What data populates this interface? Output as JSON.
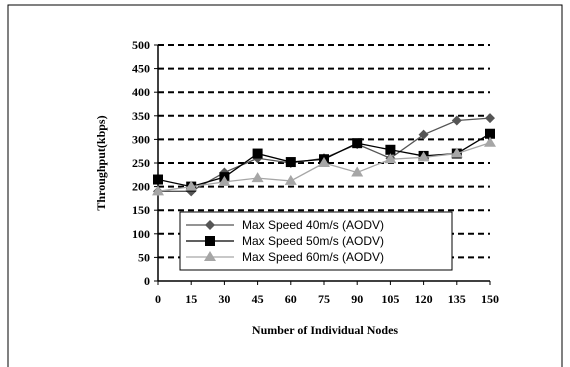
{
  "chart_data": {
    "type": "line",
    "xlabel": "Number of Individual Nodes",
    "ylabel": "Throughput(kbps)",
    "categories": [
      "0",
      "15",
      "30",
      "45",
      "60",
      "75",
      "90",
      "105",
      "120",
      "135",
      "150"
    ],
    "x": [
      0,
      15,
      30,
      45,
      60,
      75,
      90,
      105,
      120,
      135,
      150
    ],
    "ylim": [
      0,
      500
    ],
    "yticks": [
      0,
      50,
      100,
      150,
      200,
      250,
      300,
      350,
      400,
      450,
      500
    ],
    "grid": "horizontal dashed",
    "legend_position": "bottom-center",
    "series": [
      {
        "name": "Max Speed 40m/s (AODV)",
        "marker": "diamond",
        "color": "#555555",
        "values": [
          190,
          190,
          230,
          260,
          250,
          260,
          290,
          260,
          310,
          340,
          345
        ]
      },
      {
        "name": "Max Speed 50m/s (AODV)",
        "marker": "square",
        "color": "#000000",
        "values": [
          215,
          200,
          220,
          270,
          252,
          258,
          292,
          278,
          265,
          270,
          312
        ]
      },
      {
        "name": "Max Speed 60m/s (AODV)",
        "marker": "triangle",
        "color": "#a6a6a6",
        "values": [
          190,
          200,
          210,
          218,
          212,
          250,
          230,
          258,
          262,
          270,
          293
        ]
      }
    ]
  }
}
